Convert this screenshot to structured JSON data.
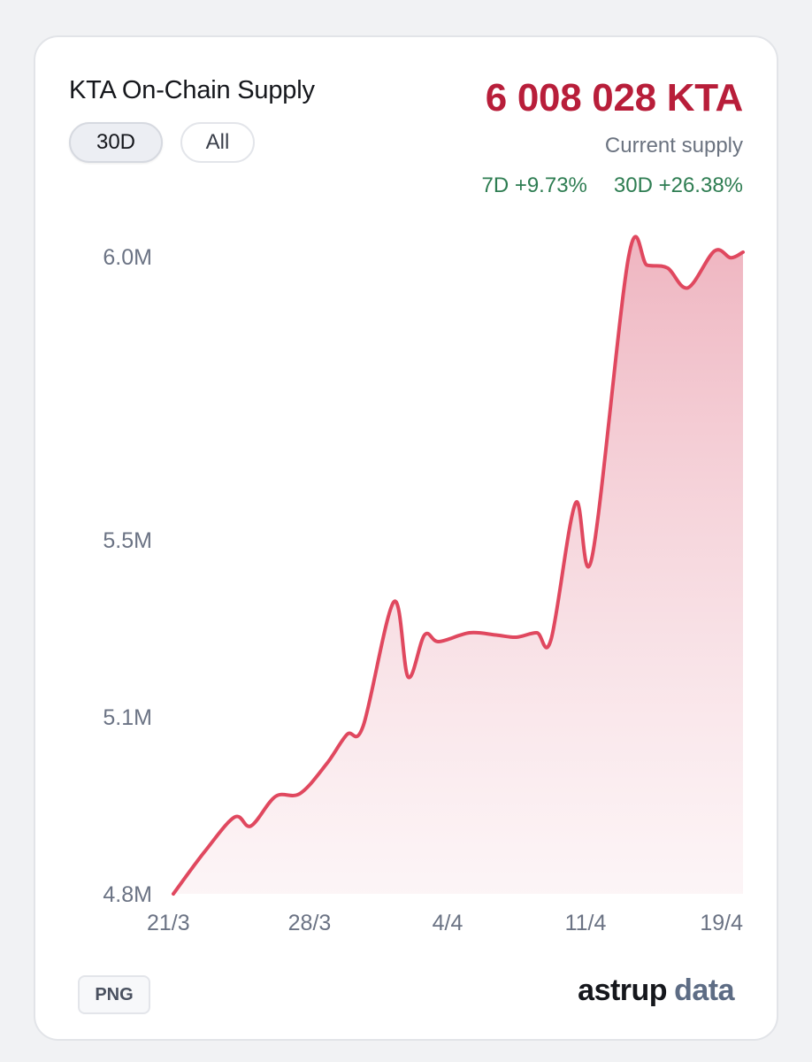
{
  "header": {
    "title": "KTA On-Chain Supply",
    "range_buttons": [
      {
        "label": "30D",
        "active": true
      },
      {
        "label": "All",
        "active": false
      }
    ],
    "current_value": "6 008 028 KTA",
    "current_label": "Current supply",
    "change_7d": "7D +9.73%",
    "change_30d": "30D +26.38%"
  },
  "footer": {
    "export_label": "PNG",
    "brand_part1": "astrup",
    "brand_part2": "data"
  },
  "colors": {
    "line": "#e0485f",
    "fill_top": "#eeb1bd",
    "value": "#b81e3a",
    "positive": "#2e7d52"
  },
  "chart_data": {
    "type": "area",
    "title": "KTA On-Chain Supply",
    "xlabel": "",
    "ylabel": "",
    "x_ticks": [
      {
        "day": 0,
        "label": "21/3"
      },
      {
        "day": 7,
        "label": "28/3"
      },
      {
        "day": 14,
        "label": "4/4"
      },
      {
        "day": 21,
        "label": "11/4"
      },
      {
        "day": 29,
        "label": "19/4"
      }
    ],
    "y_ticks": [
      {
        "value": 4800000,
        "label": "4.8M"
      },
      {
        "value": 5100000,
        "label": "5.1M"
      },
      {
        "value": 5500000,
        "label": "5.5M"
      },
      {
        "value": 6000000,
        "label": "6.0M"
      }
    ],
    "ylim": [
      4800000,
      6000000
    ],
    "series": [
      {
        "values": [
          [
            0,
            4800000
          ],
          [
            1.5,
            4870000
          ],
          [
            3.0,
            4930000
          ],
          [
            3.8,
            4915000
          ],
          [
            5.0,
            4965000
          ],
          [
            6.2,
            4970000
          ],
          [
            7.5,
            5020000
          ],
          [
            8.5,
            5070000
          ],
          [
            9.3,
            5085000
          ],
          [
            10.8,
            5360000
          ],
          [
            11.5,
            5190000
          ],
          [
            12.3,
            5285000
          ],
          [
            13.0,
            5270000
          ],
          [
            14.5,
            5290000
          ],
          [
            15.8,
            5285000
          ],
          [
            16.8,
            5280000
          ],
          [
            17.8,
            5290000
          ],
          [
            18.5,
            5275000
          ],
          [
            19.7,
            5565000
          ],
          [
            20.5,
            5460000
          ],
          [
            22.3,
            6000000
          ],
          [
            23.2,
            5985000
          ],
          [
            24.2,
            5980000
          ],
          [
            25.2,
            5945000
          ],
          [
            26.5,
            6010000
          ],
          [
            27.3,
            5998000
          ],
          [
            27.9,
            6008028
          ]
        ]
      }
    ],
    "grid": false,
    "legend": "none"
  }
}
